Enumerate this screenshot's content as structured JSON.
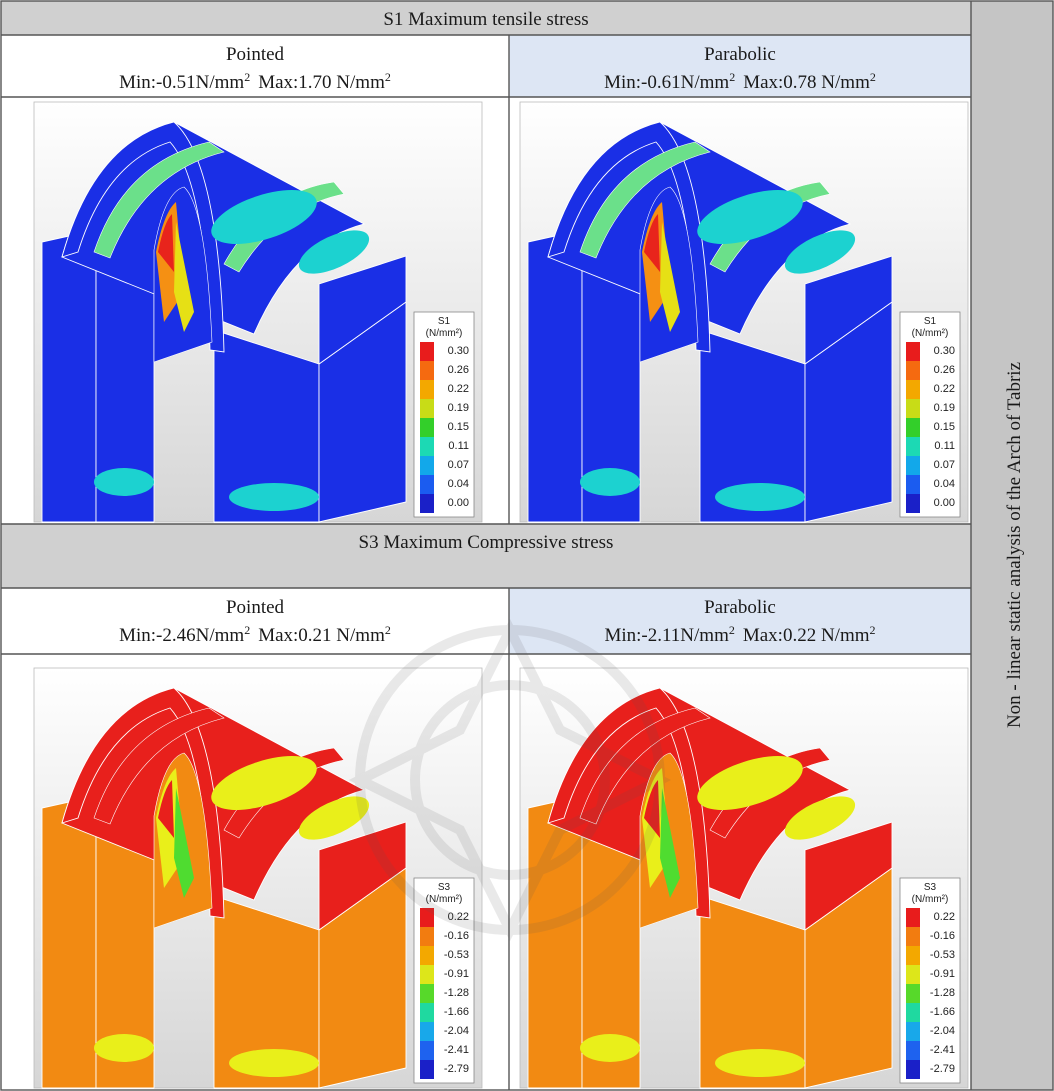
{
  "table": {
    "side_label": "Non - linear static analysis of the Arch of Tabriz",
    "s1": {
      "title": "S1 Maximum tensile stress",
      "pointed": {
        "heading": "Pointed",
        "min_label": "Min:-0.51N/mm",
        "max_label": "Max:1.70 N/mm",
        "sup": "2"
      },
      "parabolic": {
        "heading": "Parabolic",
        "min_label": "Min:-0.61N/mm",
        "max_label": "Max:0.78 N/mm",
        "sup": "2"
      },
      "legend": {
        "title": "S1",
        "unit": "(N/mm²)",
        "ticks": [
          "0.30",
          "0.26",
          "0.22",
          "0.19",
          "0.15",
          "0.11",
          "0.07",
          "0.04",
          "0.00"
        ],
        "colors": [
          "#e81c1c",
          "#f56a10",
          "#f3a800",
          "#c8dc17",
          "#33cf2a",
          "#1cd9b4",
          "#12a8ea",
          "#1b5cf0",
          "#1a20c8"
        ]
      }
    },
    "s3": {
      "title": "S3 Maximum Compressive stress",
      "pointed": {
        "heading": "Pointed",
        "min_label": "Min:-2.46N/mm",
        "max_label": "Max:0.21 N/mm",
        "sup": "2"
      },
      "parabolic": {
        "heading": "Parabolic",
        "min_label": "Min:-2.11N/mm",
        "max_label": "Max:0.22 N/mm",
        "sup": "2"
      },
      "legend": {
        "title": "S3",
        "unit": "(N/mm²)",
        "ticks": [
          "0.22",
          "-0.16",
          "-0.53",
          "-0.91",
          "-1.28",
          "-1.66",
          "-2.04",
          "-2.41",
          "-2.79"
        ],
        "colors": [
          "#e81c1c",
          "#f27c10",
          "#f3a800",
          "#dde61a",
          "#57d92a",
          "#1fd9a0",
          "#18a8ea",
          "#1e62ef",
          "#1a20c8"
        ]
      }
    },
    "fill_colors": {
      "s1_base": "#1a2fe6",
      "s1_cyan": "#1cd2d0",
      "s1_lightgreen": "#6be08a",
      "s1_green": "#35d145",
      "s1_yellow": "#e6e015",
      "s1_orange": "#f59013",
      "s1_red": "#e8241c",
      "s3_red": "#e8201c",
      "s3_orange": "#f28a12",
      "s3_yellow": "#e9ef1a",
      "s3_green": "#4fdc30",
      "header_gray": "#d0d0d0",
      "header_blue": "#dde6f4",
      "side_gray": "#c5c5c5"
    }
  }
}
